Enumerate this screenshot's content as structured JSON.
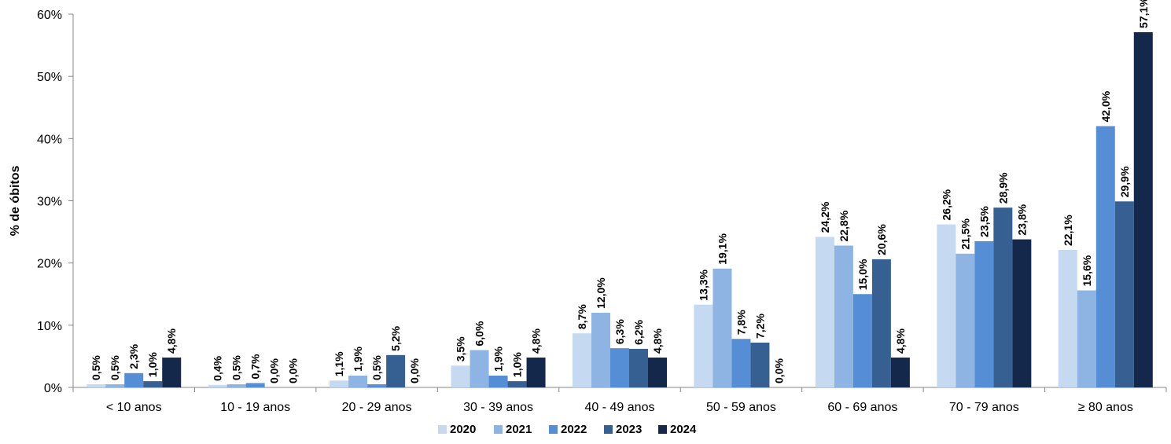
{
  "chart_data": {
    "type": "bar",
    "ylabel": "% de óbitos",
    "ylim": [
      0,
      60
    ],
    "yticks": [
      "0%",
      "10%",
      "20%",
      "30%",
      "40%",
      "50%",
      "60%"
    ],
    "grid": false,
    "legend_position": "bottom",
    "categories": [
      "< 10 anos",
      "10 - 19 anos",
      "20 - 29 anos",
      "30 - 39 anos",
      "40 - 49 anos",
      "50 - 59 anos",
      "60 - 69 anos",
      "70 - 79 anos",
      "≥ 80 anos"
    ],
    "series": [
      {
        "name": "2020",
        "color": "#c5d9f1",
        "values": [
          0.5,
          0.4,
          1.1,
          3.5,
          8.7,
          13.3,
          24.2,
          26.2,
          22.1
        ],
        "labels": [
          "0,5%",
          "0,4%",
          "1,1%",
          "3,5%",
          "8,7%",
          "13,3%",
          "24,2%",
          "26,2%",
          "22,1%"
        ]
      },
      {
        "name": "2021",
        "color": "#8eb4e3",
        "values": [
          0.5,
          0.5,
          1.9,
          6.0,
          12.0,
          19.1,
          22.8,
          21.5,
          15.6
        ],
        "labels": [
          "0,5%",
          "0,5%",
          "1,9%",
          "6,0%",
          "12,0%",
          "19,1%",
          "22,8%",
          "21,5%",
          "15,6%"
        ]
      },
      {
        "name": "2022",
        "color": "#558ed5",
        "values": [
          2.3,
          0.7,
          0.5,
          1.9,
          6.3,
          7.8,
          15.0,
          23.5,
          42.0
        ],
        "labels": [
          "2,3%",
          "0,7%",
          "0,5%",
          "1,9%",
          "6,3%",
          "7,8%",
          "15,0%",
          "23,5%",
          "42,0%"
        ]
      },
      {
        "name": "2023",
        "color": "#376092",
        "values": [
          1.0,
          0.0,
          5.2,
          1.0,
          6.2,
          7.2,
          20.6,
          28.9,
          29.9
        ],
        "labels": [
          "1,0%",
          "0,0%",
          "5,2%",
          "1,0%",
          "6,2%",
          "7,2%",
          "20,6%",
          "28,9%",
          "29,9%"
        ]
      },
      {
        "name": "2024",
        "color": "#14284b",
        "values": [
          4.8,
          0.0,
          0.0,
          4.8,
          4.8,
          0.0,
          4.8,
          23.8,
          57.1
        ],
        "labels": [
          "4,8%",
          "0,0%",
          "0,0%",
          "4,8%",
          "4,8%",
          "0,0%",
          "4,8%",
          "23,8%",
          "57,1%"
        ]
      }
    ]
  }
}
